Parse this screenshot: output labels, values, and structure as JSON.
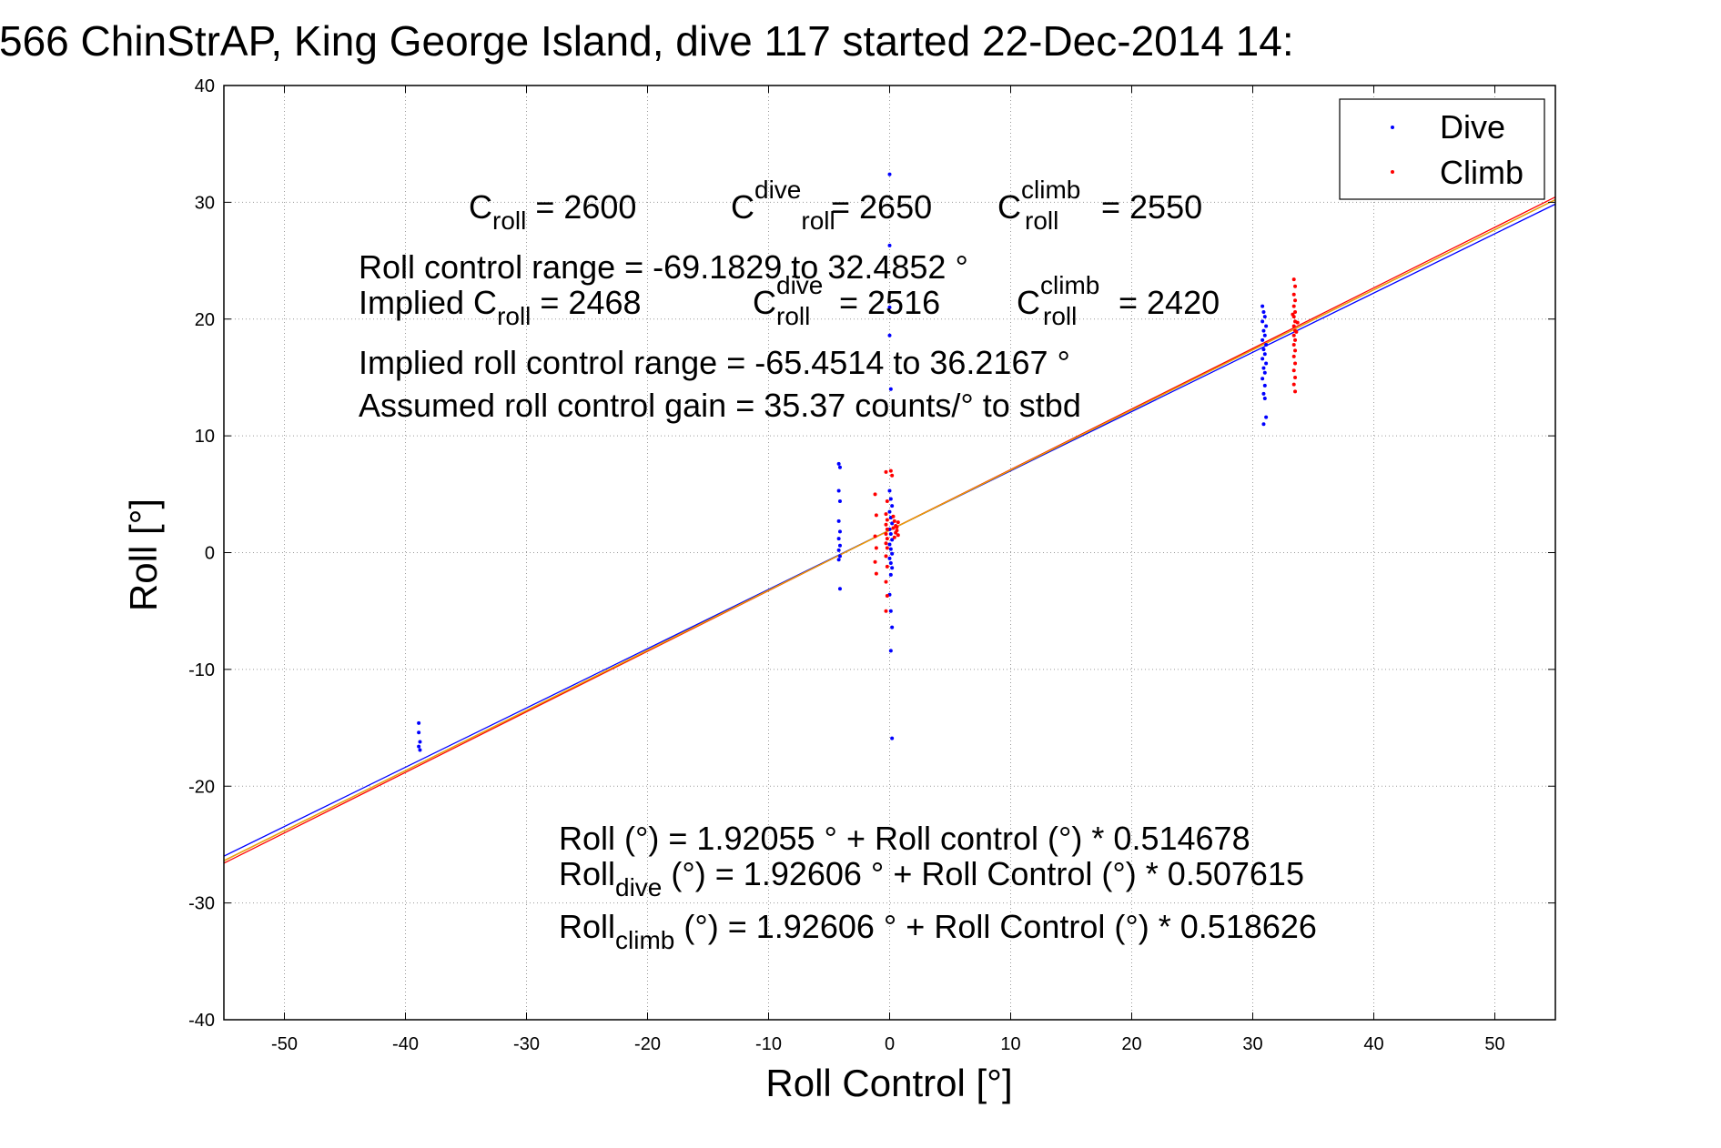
{
  "chart_data": {
    "type": "scatter",
    "title": "566 ChinStrAP, King George Island, dive 117 started 22-Dec-2014 14:",
    "xlabel": "Roll Control [°]",
    "ylabel": "Roll [°]",
    "xlim": [
      -55,
      55
    ],
    "ylim": [
      -40,
      40
    ],
    "xticks": [
      -50,
      -40,
      -30,
      -20,
      -10,
      0,
      10,
      20,
      30,
      40,
      50
    ],
    "yticks": [
      -40,
      -30,
      -20,
      -10,
      0,
      10,
      20,
      30,
      40
    ],
    "grid": true,
    "legend_position": "top-right",
    "series": [
      {
        "name": "Dive",
        "color": "#0000ff",
        "points": [
          [
            -38.9,
            -14.6
          ],
          [
            -38.9,
            -15.4
          ],
          [
            -38.8,
            -16.2
          ],
          [
            -38.9,
            -16.6
          ],
          [
            -38.8,
            -16.9
          ],
          [
            -4.2,
            7.6
          ],
          [
            -4.1,
            7.3
          ],
          [
            -4.2,
            5.3
          ],
          [
            -4.1,
            4.4
          ],
          [
            -4.2,
            2.7
          ],
          [
            -4.1,
            1.8
          ],
          [
            -4.2,
            1.2
          ],
          [
            -4.1,
            0.6
          ],
          [
            -4.2,
            0.2
          ],
          [
            -4.1,
            -0.3
          ],
          [
            -4.2,
            -0.6
          ],
          [
            -4.1,
            -3.1
          ],
          [
            0.0,
            32.4
          ],
          [
            0.0,
            26.3
          ],
          [
            0.0,
            21.0
          ],
          [
            0.0,
            18.6
          ],
          [
            0.1,
            14.0
          ],
          [
            0.0,
            5.3
          ],
          [
            0.1,
            4.6
          ],
          [
            0.2,
            4.0
          ],
          [
            0.0,
            3.5
          ],
          [
            0.1,
            3.0
          ],
          [
            0.2,
            2.5
          ],
          [
            0.0,
            2.0
          ],
          [
            0.1,
            1.6
          ],
          [
            0.2,
            1.1
          ],
          [
            0.0,
            0.7
          ],
          [
            0.1,
            0.3
          ],
          [
            0.2,
            -0.1
          ],
          [
            0.0,
            -0.5
          ],
          [
            0.1,
            -0.9
          ],
          [
            0.2,
            -1.3
          ],
          [
            0.1,
            -1.9
          ],
          [
            0.0,
            -3.6
          ],
          [
            0.1,
            -5.0
          ],
          [
            0.2,
            -6.4
          ],
          [
            0.1,
            -8.4
          ],
          [
            0.2,
            -15.9
          ],
          [
            30.8,
            21.1
          ],
          [
            30.9,
            20.6
          ],
          [
            31.0,
            20.2
          ],
          [
            30.8,
            19.8
          ],
          [
            31.1,
            19.4
          ],
          [
            30.9,
            19.0
          ],
          [
            31.0,
            18.6
          ],
          [
            30.8,
            18.2
          ],
          [
            31.1,
            17.8
          ],
          [
            30.9,
            17.4
          ],
          [
            31.0,
            17.0
          ],
          [
            30.8,
            16.6
          ],
          [
            31.1,
            16.2
          ],
          [
            30.9,
            15.8
          ],
          [
            31.0,
            15.4
          ],
          [
            30.8,
            14.9
          ],
          [
            31.0,
            14.3
          ],
          [
            30.9,
            13.6
          ],
          [
            31.0,
            13.2
          ],
          [
            31.1,
            11.6
          ],
          [
            30.9,
            11.0
          ]
        ]
      },
      {
        "name": "Climb",
        "color": "#ff0000",
        "points": [
          [
            -1.2,
            5.0
          ],
          [
            -1.1,
            3.2
          ],
          [
            -1.2,
            1.4
          ],
          [
            -1.1,
            0.4
          ],
          [
            -1.2,
            -0.8
          ],
          [
            -1.1,
            -1.8
          ],
          [
            -0.3,
            6.9
          ],
          [
            -0.2,
            4.4
          ],
          [
            -0.3,
            3.3
          ],
          [
            -0.2,
            2.8
          ],
          [
            -0.3,
            2.4
          ],
          [
            -0.2,
            2.0
          ],
          [
            -0.3,
            1.6
          ],
          [
            -0.2,
            1.2
          ],
          [
            -0.3,
            0.8
          ],
          [
            -0.2,
            0.4
          ],
          [
            -0.3,
            -0.3
          ],
          [
            -0.2,
            -1.2
          ],
          [
            -0.3,
            -2.5
          ],
          [
            -0.2,
            -3.7
          ],
          [
            -0.3,
            -5.0
          ],
          [
            0.3,
            3.1
          ],
          [
            0.4,
            2.7
          ],
          [
            0.5,
            2.3
          ],
          [
            0.6,
            1.9
          ],
          [
            0.7,
            1.5
          ],
          [
            0.3,
            2.1
          ],
          [
            0.5,
            1.7
          ],
          [
            0.7,
            2.6
          ],
          [
            0.4,
            1.3
          ],
          [
            0.6,
            2.2
          ],
          [
            0.1,
            7.0
          ],
          [
            0.2,
            6.6
          ],
          [
            33.4,
            23.4
          ],
          [
            33.5,
            22.8
          ],
          [
            33.4,
            22.1
          ],
          [
            33.5,
            21.6
          ],
          [
            33.4,
            21.1
          ],
          [
            33.5,
            20.6
          ],
          [
            33.4,
            20.2
          ],
          [
            33.5,
            19.8
          ],
          [
            33.4,
            19.4
          ],
          [
            33.5,
            19.0
          ],
          [
            33.4,
            18.6
          ],
          [
            33.5,
            18.2
          ],
          [
            33.4,
            17.8
          ],
          [
            33.5,
            17.3
          ],
          [
            33.4,
            16.8
          ],
          [
            33.5,
            16.2
          ],
          [
            33.4,
            15.6
          ],
          [
            33.5,
            15.0
          ],
          [
            33.4,
            14.4
          ],
          [
            33.5,
            13.8
          ],
          [
            33.7,
            19.7
          ],
          [
            33.3,
            20.4
          ],
          [
            33.6,
            18.9
          ]
        ]
      }
    ],
    "fit_lines": [
      {
        "color": "#0000ff",
        "intercept": 1.92606,
        "slope": 0.507615
      },
      {
        "color": "#ff0000",
        "intercept": 1.92606,
        "slope": 0.518626
      },
      {
        "color": "#00aa00",
        "intercept": 1.92055,
        "slope": 0.514678
      },
      {
        "color": "#ff9900",
        "intercept": 1.92055,
        "slope": 0.514678
      }
    ],
    "annotations": {
      "c_roll": {
        "base": "C",
        "sub": "roll",
        "rest": " = 2600"
      },
      "c_dive": {
        "base": "C",
        "sup": "dive",
        "sub": "roll",
        "rest": " = 2650"
      },
      "c_climb": {
        "base": "C",
        "sup": "climb",
        "sub": "roll",
        "rest": " = 2550"
      },
      "range_line": "Roll control range = -69.1829 to 32.4852 °",
      "implied_c_roll": {
        "base": "Implied C",
        "sub": "roll",
        "rest": " = 2468"
      },
      "implied_c_dive": {
        "base": "C",
        "sup": "dive",
        "sub": "roll",
        "rest": " = 2516"
      },
      "implied_c_climb": {
        "base": "C",
        "sup": "climb",
        "sub": "roll",
        "rest": " = 2420"
      },
      "implied_range_line": "Implied roll control range = -65.4514 to 36.2167 °",
      "gain_line": "Assumed roll control gain = 35.37 counts/° to stbd",
      "fit_all": "Roll (°) = 1.92055 ° + Roll control (°) * 0.514678",
      "fit_dive": {
        "base": "Roll",
        "sub": "dive",
        "rest": " (°) = 1.92606 ° + Roll Control (°) * 0.507615"
      },
      "fit_climb": {
        "base": "Roll",
        "sub": "climb",
        "rest": " (°) = 1.92606 ° + Roll Control (°) * 0.518626"
      }
    }
  }
}
